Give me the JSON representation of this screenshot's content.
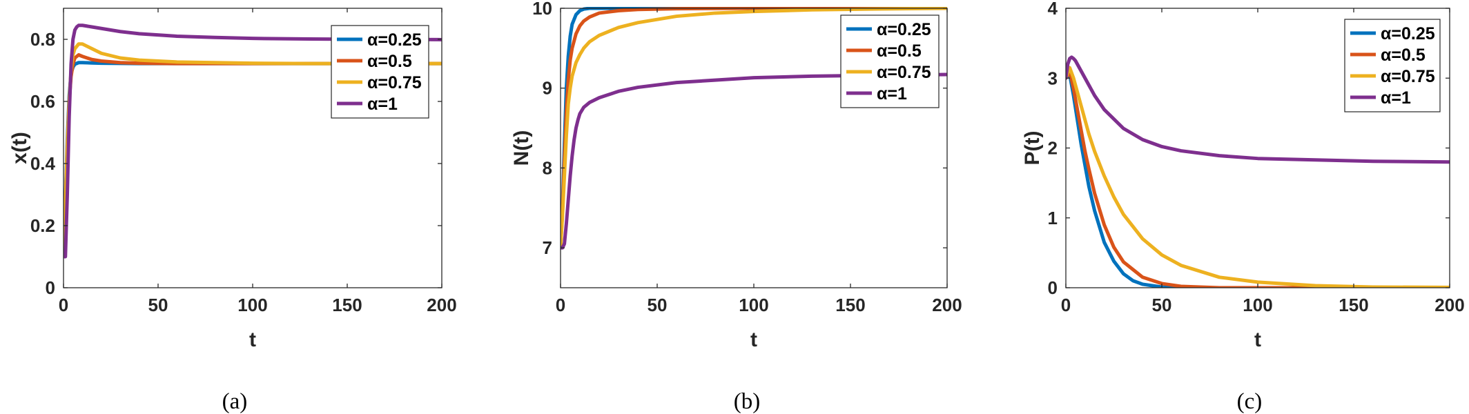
{
  "colors": {
    "alpha_0_25": "#0072BD",
    "alpha_0_5": "#D95319",
    "alpha_0_75": "#EDB120",
    "alpha_1": "#7E2F8E"
  },
  "chart_data": [
    {
      "type": "line",
      "caption": "(a)",
      "xlabel": "t",
      "ylabel": "x(t)",
      "xlim": [
        0,
        200
      ],
      "ylim": [
        0,
        0.9
      ],
      "xticks": [
        "0",
        "50",
        "100",
        "150",
        "200"
      ],
      "yticks": [
        "0",
        "0.2",
        "0.4",
        "0.6",
        "0.8"
      ],
      "legend_position": "top-right",
      "series": [
        {
          "name": "α=0.25",
          "color": "#0072BD",
          "x": [
            0,
            1,
            2,
            3,
            4,
            5,
            6,
            8,
            10,
            15,
            20,
            40,
            80,
            120,
            160,
            200
          ],
          "y": [
            0.1,
            0.28,
            0.48,
            0.62,
            0.69,
            0.71,
            0.72,
            0.725,
            0.725,
            0.724,
            0.723,
            0.722,
            0.722,
            0.722,
            0.722,
            0.722
          ]
        },
        {
          "name": "α=0.5",
          "color": "#D95319",
          "x": [
            0,
            1,
            2,
            3,
            4,
            5,
            6,
            8,
            10,
            15,
            20,
            30,
            40,
            60,
            80,
            120,
            160,
            200
          ],
          "y": [
            0.1,
            0.27,
            0.46,
            0.6,
            0.68,
            0.72,
            0.74,
            0.75,
            0.745,
            0.735,
            0.73,
            0.725,
            0.723,
            0.722,
            0.722,
            0.722,
            0.722,
            0.722
          ]
        },
        {
          "name": "α=0.75",
          "color": "#EDB120",
          "x": [
            0,
            1,
            2,
            3,
            4,
            5,
            6,
            8,
            10,
            15,
            20,
            30,
            40,
            60,
            80,
            100,
            130,
            160,
            200
          ],
          "y": [
            0.1,
            0.26,
            0.45,
            0.6,
            0.7,
            0.75,
            0.77,
            0.785,
            0.785,
            0.77,
            0.755,
            0.74,
            0.733,
            0.727,
            0.725,
            0.723,
            0.722,
            0.722,
            0.722
          ]
        },
        {
          "name": "α=1",
          "color": "#7E2F8E",
          "x": [
            0,
            1,
            2,
            3,
            4,
            5,
            6,
            7,
            8,
            10,
            12,
            15,
            20,
            30,
            40,
            60,
            80,
            100,
            130,
            160,
            200
          ],
          "y": [
            0.1,
            0.1,
            0.3,
            0.55,
            0.72,
            0.8,
            0.83,
            0.84,
            0.845,
            0.845,
            0.843,
            0.84,
            0.835,
            0.825,
            0.818,
            0.81,
            0.806,
            0.803,
            0.801,
            0.8,
            0.799
          ]
        }
      ]
    },
    {
      "type": "line",
      "caption": "(b)",
      "xlabel": "t",
      "ylabel": "N(t)",
      "xlim": [
        0,
        200
      ],
      "ylim": [
        6.5,
        10
      ],
      "xticks": [
        "0",
        "50",
        "100",
        "150",
        "200"
      ],
      "yticks": [
        "7",
        "8",
        "9",
        "10"
      ],
      "legend_position": "top-right",
      "series": [
        {
          "name": "α=0.25",
          "color": "#0072BD",
          "x": [
            0,
            1,
            2,
            3,
            4,
            5,
            6,
            8,
            10,
            12,
            15,
            20,
            30,
            50,
            100,
            200
          ],
          "y": [
            7.0,
            7.5,
            8.3,
            9.0,
            9.4,
            9.65,
            9.8,
            9.92,
            9.97,
            9.99,
            10.0,
            10.0,
            10.0,
            10.0,
            10.0,
            10.0
          ]
        },
        {
          "name": "α=0.5",
          "color": "#D95319",
          "x": [
            0,
            1,
            2,
            3,
            4,
            5,
            6,
            8,
            10,
            12,
            15,
            20,
            30,
            40,
            60,
            100,
            200
          ],
          "y": [
            7.0,
            7.45,
            8.1,
            8.7,
            9.1,
            9.35,
            9.5,
            9.68,
            9.78,
            9.84,
            9.89,
            9.94,
            9.97,
            9.985,
            9.995,
            10.0,
            10.0
          ]
        },
        {
          "name": "α=0.75",
          "color": "#EDB120",
          "x": [
            0,
            1,
            2,
            3,
            4,
            5,
            6,
            8,
            10,
            12,
            15,
            20,
            30,
            40,
            60,
            80,
            100,
            130,
            160,
            200
          ],
          "y": [
            7.0,
            7.4,
            7.9,
            8.4,
            8.8,
            9.0,
            9.15,
            9.32,
            9.42,
            9.5,
            9.58,
            9.66,
            9.76,
            9.82,
            9.9,
            9.94,
            9.96,
            9.98,
            9.99,
            10.0
          ]
        },
        {
          "name": "α=1",
          "color": "#7E2F8E",
          "x": [
            0,
            1,
            2,
            3,
            4,
            5,
            6,
            7,
            8,
            9,
            10,
            12,
            15,
            20,
            30,
            40,
            60,
            80,
            100,
            130,
            160,
            200
          ],
          "y": [
            7.0,
            7.0,
            7.05,
            7.3,
            7.6,
            7.9,
            8.15,
            8.35,
            8.5,
            8.6,
            8.68,
            8.76,
            8.82,
            8.88,
            8.96,
            9.01,
            9.07,
            9.1,
            9.13,
            9.15,
            9.16,
            9.17
          ]
        }
      ]
    },
    {
      "type": "line",
      "caption": "(c)",
      "xlabel": "t",
      "ylabel": "P(t)",
      "xlim": [
        0,
        200
      ],
      "ylim": [
        0,
        4
      ],
      "xticks": [
        "0",
        "50",
        "100",
        "150",
        "200"
      ],
      "yticks": [
        "0",
        "1",
        "2",
        "3",
        "4"
      ],
      "legend_position": "top-right",
      "series": [
        {
          "name": "α=0.25",
          "color": "#0072BD",
          "x": [
            0,
            2,
            4,
            6,
            8,
            10,
            12,
            15,
            20,
            25,
            30,
            35,
            40,
            50,
            60,
            80,
            100,
            200
          ],
          "y": [
            3.0,
            3.05,
            2.75,
            2.4,
            2.05,
            1.75,
            1.45,
            1.1,
            0.65,
            0.38,
            0.2,
            0.1,
            0.05,
            0.01,
            0.0,
            0.0,
            0.0,
            0.0
          ]
        },
        {
          "name": "α=0.5",
          "color": "#D95319",
          "x": [
            0,
            2,
            4,
            6,
            8,
            10,
            12,
            15,
            20,
            25,
            30,
            40,
            50,
            60,
            70,
            80,
            100,
            200
          ],
          "y": [
            3.0,
            3.1,
            2.85,
            2.55,
            2.25,
            1.95,
            1.7,
            1.35,
            0.9,
            0.58,
            0.37,
            0.15,
            0.06,
            0.02,
            0.01,
            0.0,
            0.0,
            0.0
          ]
        },
        {
          "name": "α=0.75",
          "color": "#EDB120",
          "x": [
            0,
            2,
            4,
            6,
            8,
            10,
            12,
            15,
            20,
            25,
            30,
            40,
            50,
            60,
            80,
            100,
            130,
            160,
            200
          ],
          "y": [
            3.0,
            3.15,
            3.0,
            2.8,
            2.6,
            2.4,
            2.2,
            1.95,
            1.6,
            1.3,
            1.05,
            0.7,
            0.47,
            0.32,
            0.15,
            0.08,
            0.03,
            0.01,
            0.005
          ]
        },
        {
          "name": "α=1",
          "color": "#7E2F8E",
          "x": [
            0,
            1,
            2,
            3,
            4,
            5,
            6,
            8,
            10,
            12,
            15,
            20,
            30,
            40,
            50,
            60,
            80,
            100,
            130,
            160,
            200
          ],
          "y": [
            3.0,
            3.2,
            3.28,
            3.3,
            3.28,
            3.25,
            3.2,
            3.1,
            3.0,
            2.9,
            2.75,
            2.55,
            2.28,
            2.12,
            2.02,
            1.96,
            1.89,
            1.85,
            1.83,
            1.81,
            1.8
          ]
        }
      ]
    }
  ]
}
